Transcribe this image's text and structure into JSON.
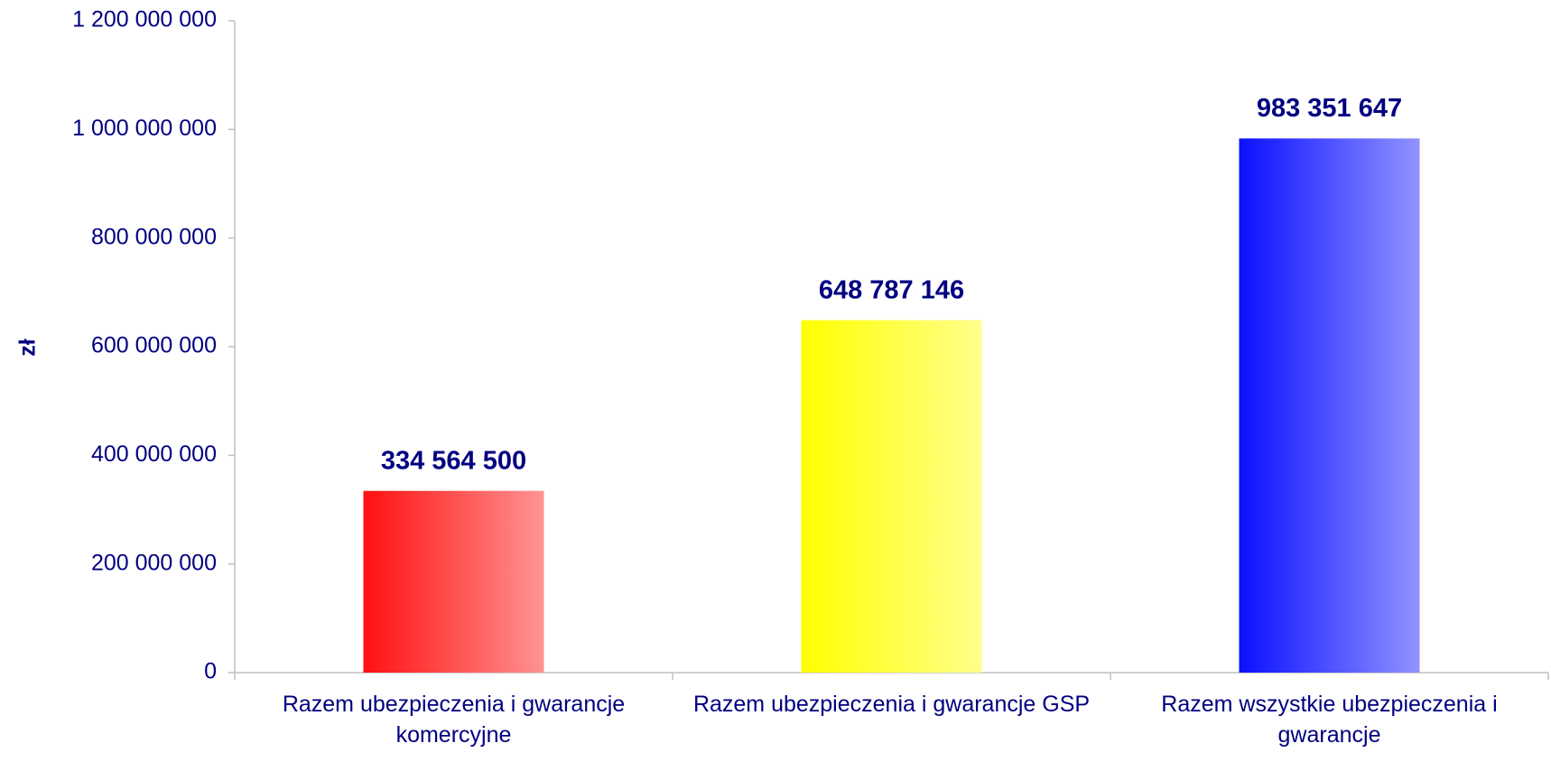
{
  "chart_data": {
    "type": "bar",
    "y_label": "zł",
    "categories": [
      "Razem ubezpieczenia i gwarancje komercyjne",
      "Razem ubezpieczenia i gwarancje GSP",
      "Razem wszystkie ubezpieczenia i gwarancje"
    ],
    "values": [
      334564500,
      648787146,
      983351647
    ],
    "value_labels": [
      "334 564 500",
      "648 787 146",
      "983 351 647"
    ],
    "colors": [
      "#ff1010",
      "#ffff00",
      "#0a10ff"
    ],
    "ylim": [
      0,
      1200000000
    ],
    "yticks": [
      0,
      {
        "value": 200000000,
        "label": "200 000 000"
      },
      {
        "value": 400000000,
        "label": "400 000 000"
      },
      {
        "value": 600000000,
        "label": "600 000 000"
      },
      {
        "value": 800000000,
        "label": "800 000 000"
      },
      {
        "value": 1000000000,
        "label": "1 000 000 000"
      },
      {
        "value": 1200000000,
        "label": "1 200 000 000"
      }
    ],
    "grid": false
  }
}
